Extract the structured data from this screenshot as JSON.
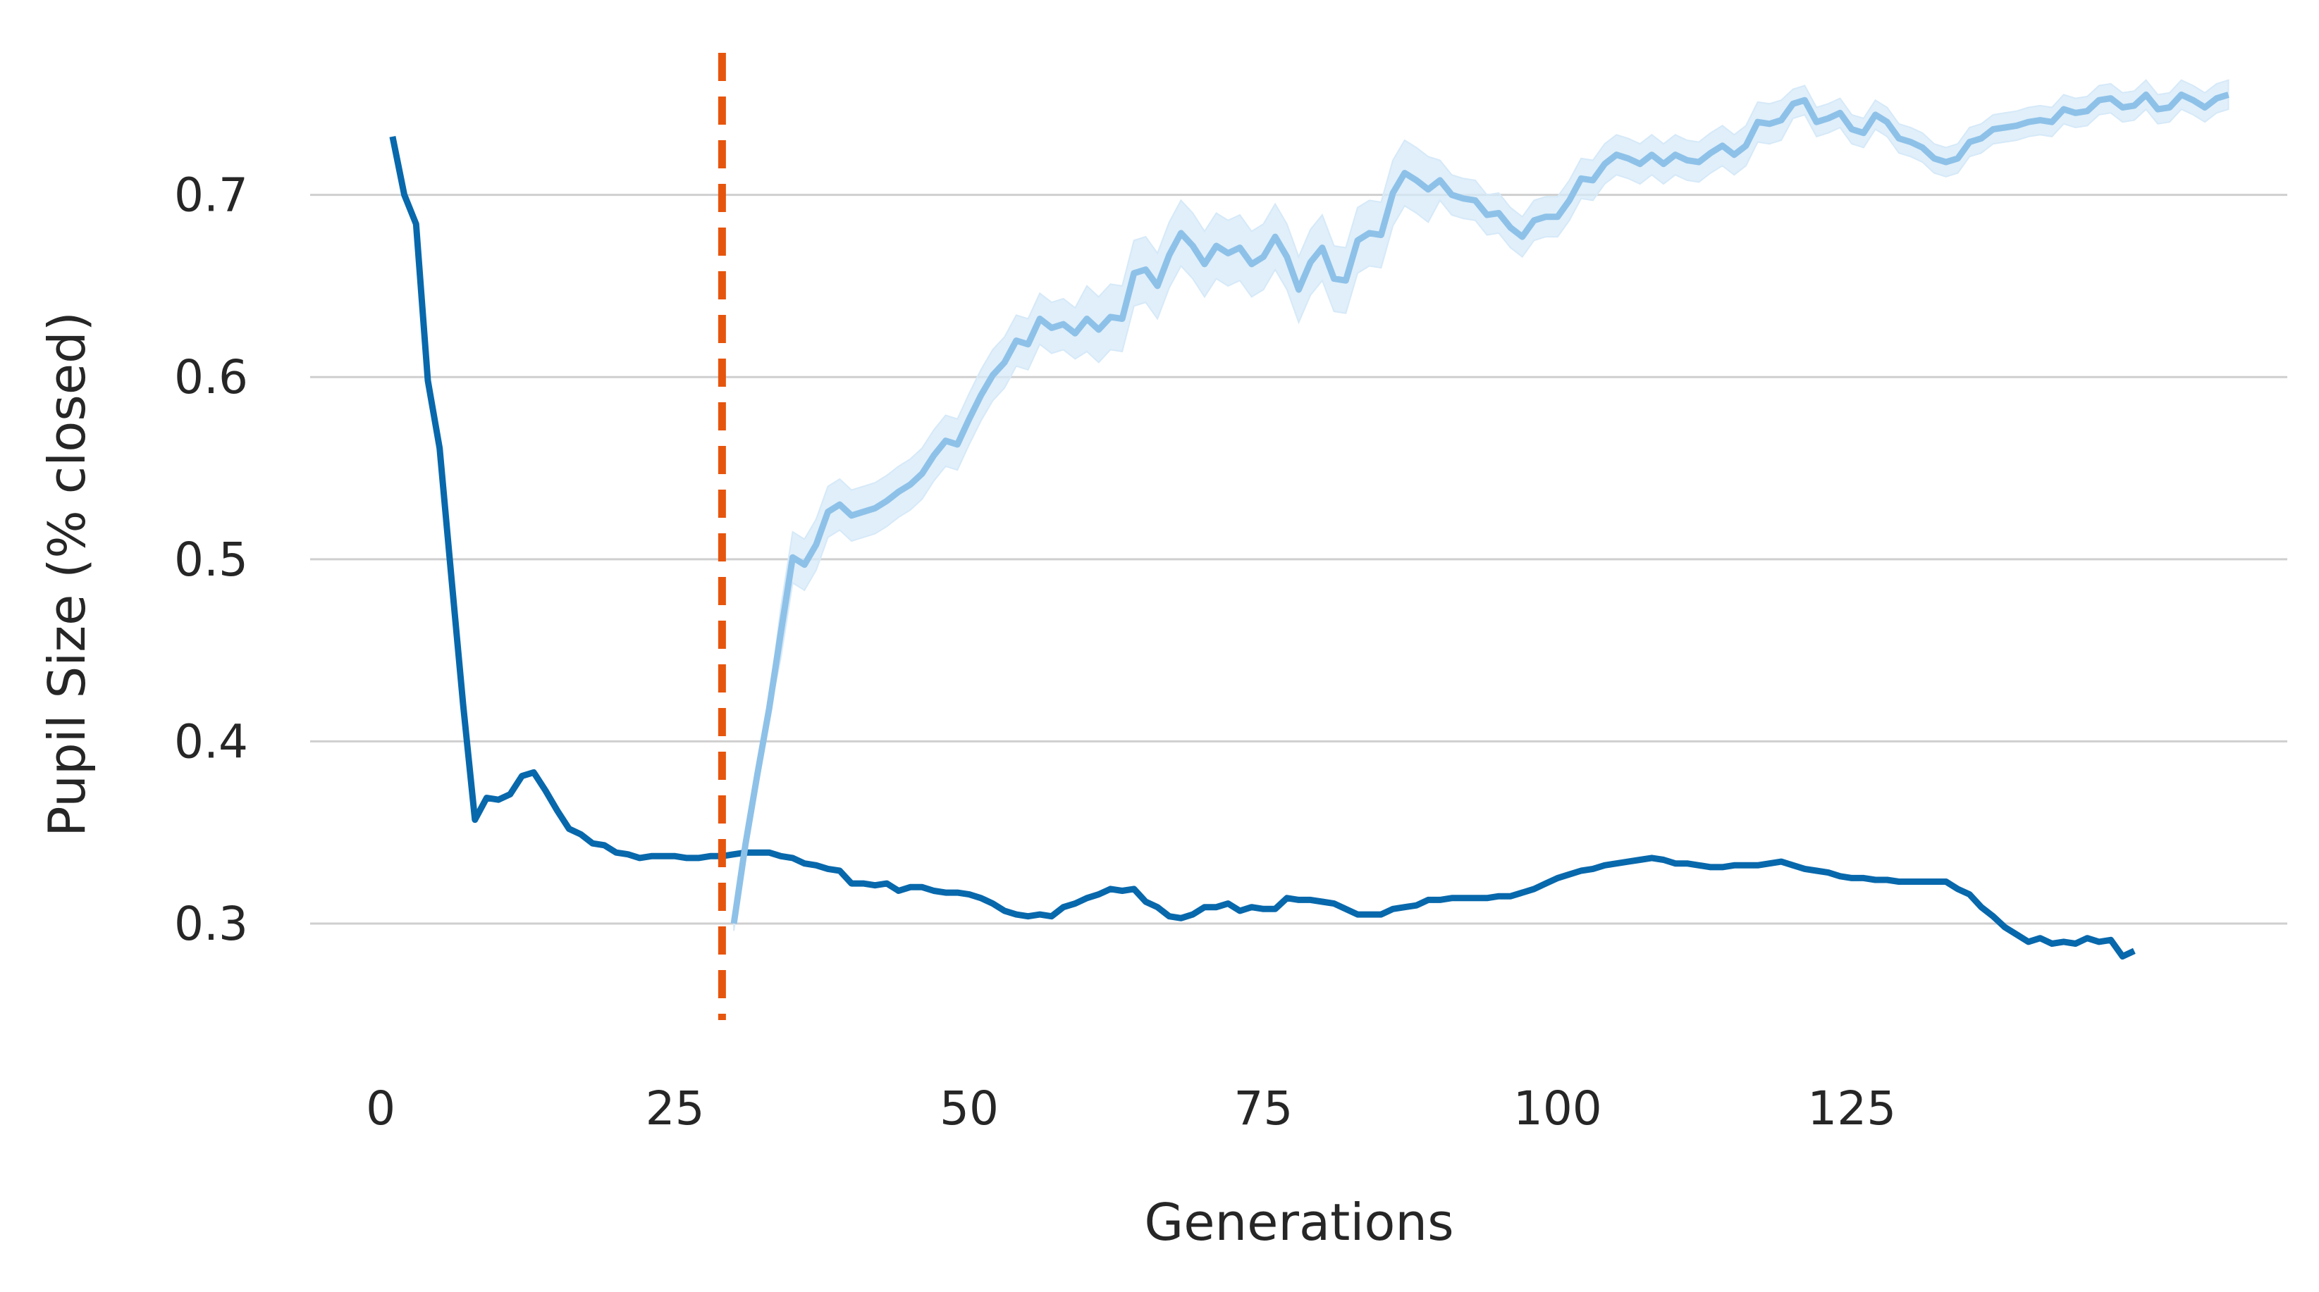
{
  "chart_data": {
    "type": "line",
    "title": "",
    "xlabel": "Generations",
    "ylabel": "Pupil Size (% closed)",
    "xlim": [
      -6,
      162
    ],
    "ylim": [
      0.242,
      0.783
    ],
    "x_ticks": [
      0,
      25,
      50,
      75,
      100,
      125
    ],
    "x_tick_labels": [
      "0",
      "25",
      "50",
      "75",
      "100",
      "125"
    ],
    "y_ticks": [
      0.3,
      0.4,
      0.5,
      0.6,
      0.7
    ],
    "y_tick_labels": [
      "0.3",
      "0.4",
      "0.5",
      "0.6",
      "0.7"
    ],
    "grid": "horizontal",
    "legend": "none",
    "vline": {
      "x": 29,
      "color": "#e6550d",
      "style": "dashed"
    },
    "colors": {
      "dark": "#0868ac",
      "light": "#8ec1e8",
      "band": "#d6e9f8",
      "text": "#262626",
      "grid": "#cfcfcf"
    },
    "series": [
      {
        "color": "#0868ac",
        "points": [
          [
            1,
            0.732
          ],
          [
            2,
            0.7
          ],
          [
            3,
            0.684
          ],
          [
            4,
            0.598
          ],
          [
            5,
            0.561
          ],
          [
            6,
            0.49
          ],
          [
            7,
            0.42
          ],
          [
            8,
            0.357
          ],
          [
            9,
            0.369
          ],
          [
            10,
            0.368
          ],
          [
            11,
            0.371
          ],
          [
            12,
            0.381
          ],
          [
            13,
            0.383
          ],
          [
            14,
            0.373
          ],
          [
            15,
            0.362
          ],
          [
            16,
            0.352
          ],
          [
            17,
            0.349
          ],
          [
            18,
            0.344
          ],
          [
            19,
            0.343
          ],
          [
            20,
            0.339
          ],
          [
            21,
            0.338
          ],
          [
            22,
            0.336
          ],
          [
            23,
            0.337
          ],
          [
            24,
            0.337
          ],
          [
            25,
            0.337
          ],
          [
            26,
            0.336
          ],
          [
            27,
            0.336
          ],
          [
            28,
            0.337
          ],
          [
            29,
            0.337
          ],
          [
            30,
            0.338
          ],
          [
            31,
            0.339
          ],
          [
            32,
            0.339
          ],
          [
            33,
            0.339
          ],
          [
            34,
            0.337
          ],
          [
            35,
            0.336
          ],
          [
            36,
            0.333
          ],
          [
            37,
            0.332
          ],
          [
            38,
            0.33
          ],
          [
            39,
            0.329
          ],
          [
            40,
            0.322
          ],
          [
            41,
            0.322
          ],
          [
            42,
            0.321
          ],
          [
            43,
            0.322
          ],
          [
            44,
            0.318
          ],
          [
            45,
            0.32
          ],
          [
            46,
            0.32
          ],
          [
            47,
            0.318
          ],
          [
            48,
            0.317
          ],
          [
            49,
            0.317
          ],
          [
            50,
            0.316
          ],
          [
            51,
            0.314
          ],
          [
            52,
            0.311
          ],
          [
            53,
            0.307
          ],
          [
            54,
            0.305
          ],
          [
            55,
            0.304
          ],
          [
            56,
            0.305
          ],
          [
            57,
            0.304
          ],
          [
            58,
            0.309
          ],
          [
            59,
            0.311
          ],
          [
            60,
            0.314
          ],
          [
            61,
            0.316
          ],
          [
            62,
            0.319
          ],
          [
            63,
            0.318
          ],
          [
            64,
            0.319
          ],
          [
            65,
            0.312
          ],
          [
            66,
            0.309
          ],
          [
            67,
            0.304
          ],
          [
            68,
            0.303
          ],
          [
            69,
            0.305
          ],
          [
            70,
            0.309
          ],
          [
            71,
            0.309
          ],
          [
            72,
            0.311
          ],
          [
            73,
            0.307
          ],
          [
            74,
            0.309
          ],
          [
            75,
            0.308
          ],
          [
            76,
            0.308
          ],
          [
            77,
            0.314
          ],
          [
            78,
            0.313
          ],
          [
            79,
            0.313
          ],
          [
            80,
            0.312
          ],
          [
            81,
            0.311
          ],
          [
            82,
            0.308
          ],
          [
            83,
            0.305
          ],
          [
            84,
            0.305
          ],
          [
            85,
            0.305
          ],
          [
            86,
            0.308
          ],
          [
            87,
            0.309
          ],
          [
            88,
            0.31
          ],
          [
            89,
            0.313
          ],
          [
            90,
            0.313
          ],
          [
            91,
            0.314
          ],
          [
            92,
            0.314
          ],
          [
            93,
            0.314
          ],
          [
            94,
            0.314
          ],
          [
            95,
            0.315
          ],
          [
            96,
            0.315
          ],
          [
            97,
            0.317
          ],
          [
            98,
            0.319
          ],
          [
            99,
            0.322
          ],
          [
            100,
            0.325
          ],
          [
            101,
            0.327
          ],
          [
            102,
            0.329
          ],
          [
            103,
            0.33
          ],
          [
            104,
            0.332
          ],
          [
            105,
            0.333
          ],
          [
            106,
            0.334
          ],
          [
            107,
            0.335
          ],
          [
            108,
            0.336
          ],
          [
            109,
            0.335
          ],
          [
            110,
            0.333
          ],
          [
            111,
            0.333
          ],
          [
            112,
            0.332
          ],
          [
            113,
            0.331
          ],
          [
            114,
            0.331
          ],
          [
            115,
            0.332
          ],
          [
            116,
            0.332
          ],
          [
            117,
            0.332
          ],
          [
            118,
            0.333
          ],
          [
            119,
            0.334
          ],
          [
            120,
            0.332
          ],
          [
            121,
            0.33
          ],
          [
            122,
            0.329
          ],
          [
            123,
            0.328
          ],
          [
            124,
            0.326
          ],
          [
            125,
            0.325
          ],
          [
            126,
            0.325
          ],
          [
            127,
            0.324
          ],
          [
            128,
            0.324
          ],
          [
            129,
            0.323
          ],
          [
            130,
            0.323
          ],
          [
            131,
            0.323
          ],
          [
            132,
            0.323
          ],
          [
            133,
            0.323
          ],
          [
            134,
            0.319
          ],
          [
            135,
            0.316
          ],
          [
            136,
            0.309
          ],
          [
            137,
            0.304
          ],
          [
            138,
            0.298
          ],
          [
            139,
            0.294
          ],
          [
            140,
            0.29
          ],
          [
            141,
            0.292
          ],
          [
            142,
            0.289
          ],
          [
            143,
            0.29
          ],
          [
            144,
            0.289
          ],
          [
            145,
            0.292
          ],
          [
            146,
            0.29
          ],
          [
            147,
            0.291
          ],
          [
            148,
            0.282
          ],
          [
            149,
            0.285
          ]
        ]
      },
      {
        "color": "#8ec1e8",
        "band": true,
        "points": [
          [
            30,
            0.3
          ],
          [
            31,
            0.344
          ],
          [
            32,
            0.382
          ],
          [
            33,
            0.418
          ],
          [
            34,
            0.46
          ],
          [
            35,
            0.501
          ],
          [
            36,
            0.497
          ],
          [
            37,
            0.508
          ],
          [
            38,
            0.526
          ],
          [
            39,
            0.53
          ],
          [
            40,
            0.524
          ],
          [
            41,
            0.526
          ],
          [
            42,
            0.528
          ],
          [
            43,
            0.532
          ],
          [
            44,
            0.537
          ],
          [
            45,
            0.541
          ],
          [
            46,
            0.547
          ],
          [
            47,
            0.557
          ],
          [
            48,
            0.565
          ],
          [
            49,
            0.563
          ],
          [
            50,
            0.577
          ],
          [
            51,
            0.59
          ],
          [
            52,
            0.601
          ],
          [
            53,
            0.608
          ],
          [
            54,
            0.62
          ],
          [
            55,
            0.618
          ],
          [
            56,
            0.632
          ],
          [
            57,
            0.627
          ],
          [
            58,
            0.629
          ],
          [
            59,
            0.624
          ],
          [
            60,
            0.632
          ],
          [
            61,
            0.626
          ],
          [
            62,
            0.633
          ],
          [
            63,
            0.632
          ],
          [
            64,
            0.657
          ],
          [
            65,
            0.659
          ],
          [
            66,
            0.65
          ],
          [
            67,
            0.667
          ],
          [
            68,
            0.679
          ],
          [
            69,
            0.672
          ],
          [
            70,
            0.662
          ],
          [
            71,
            0.672
          ],
          [
            72,
            0.668
          ],
          [
            73,
            0.671
          ],
          [
            74,
            0.662
          ],
          [
            75,
            0.666
          ],
          [
            76,
            0.677
          ],
          [
            77,
            0.666
          ],
          [
            78,
            0.648
          ],
          [
            79,
            0.663
          ],
          [
            80,
            0.671
          ],
          [
            81,
            0.654
          ],
          [
            82,
            0.653
          ],
          [
            83,
            0.675
          ],
          [
            84,
            0.679
          ],
          [
            85,
            0.678
          ],
          [
            86,
            0.701
          ],
          [
            87,
            0.712
          ],
          [
            88,
            0.708
          ],
          [
            89,
            0.703
          ],
          [
            90,
            0.708
          ],
          [
            91,
            0.7
          ],
          [
            92,
            0.698
          ],
          [
            93,
            0.697
          ],
          [
            94,
            0.689
          ],
          [
            95,
            0.69
          ],
          [
            96,
            0.682
          ],
          [
            97,
            0.677
          ],
          [
            98,
            0.686
          ],
          [
            99,
            0.688
          ],
          [
            100,
            0.688
          ],
          [
            101,
            0.697
          ],
          [
            102,
            0.709
          ],
          [
            103,
            0.708
          ],
          [
            104,
            0.717
          ],
          [
            105,
            0.722
          ],
          [
            106,
            0.72
          ],
          [
            107,
            0.717
          ],
          [
            108,
            0.722
          ],
          [
            109,
            0.717
          ],
          [
            110,
            0.722
          ],
          [
            111,
            0.719
          ],
          [
            112,
            0.718
          ],
          [
            113,
            0.723
          ],
          [
            114,
            0.727
          ],
          [
            115,
            0.722
          ],
          [
            116,
            0.727
          ],
          [
            117,
            0.74
          ],
          [
            118,
            0.739
          ],
          [
            119,
            0.741
          ],
          [
            120,
            0.75
          ],
          [
            121,
            0.752
          ],
          [
            122,
            0.74
          ],
          [
            123,
            0.742
          ],
          [
            124,
            0.745
          ],
          [
            125,
            0.736
          ],
          [
            126,
            0.734
          ],
          [
            127,
            0.744
          ],
          [
            128,
            0.74
          ],
          [
            129,
            0.731
          ],
          [
            130,
            0.729
          ],
          [
            131,
            0.726
          ],
          [
            132,
            0.72
          ],
          [
            133,
            0.718
          ],
          [
            134,
            0.72
          ],
          [
            135,
            0.729
          ],
          [
            136,
            0.731
          ],
          [
            137,
            0.736
          ],
          [
            138,
            0.737
          ],
          [
            139,
            0.738
          ],
          [
            140,
            0.74
          ],
          [
            141,
            0.741
          ],
          [
            142,
            0.74
          ],
          [
            143,
            0.747
          ],
          [
            144,
            0.745
          ],
          [
            145,
            0.746
          ],
          [
            146,
            0.752
          ],
          [
            147,
            0.753
          ],
          [
            148,
            0.748
          ],
          [
            149,
            0.749
          ],
          [
            150,
            0.755
          ],
          [
            151,
            0.747
          ],
          [
            152,
            0.748
          ],
          [
            153,
            0.755
          ],
          [
            154,
            0.752
          ],
          [
            155,
            0.748
          ],
          [
            156,
            0.753
          ],
          [
            157,
            0.755
          ]
        ]
      }
    ]
  }
}
